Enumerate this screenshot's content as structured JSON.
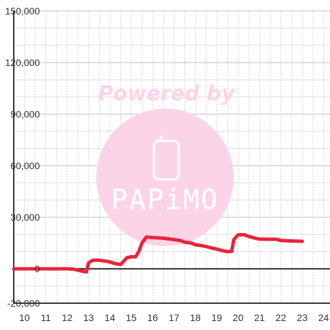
{
  "chart_data": {
    "type": "line",
    "title": "",
    "xlabel": "",
    "ylabel": "",
    "xlim": [
      9.5,
      24.3
    ],
    "ylim": [
      -20000,
      150000
    ],
    "x_ticks": [
      10,
      11,
      12,
      13,
      14,
      15,
      16,
      17,
      18,
      19,
      20,
      21,
      22,
      23,
      24
    ],
    "y_ticks": [
      -20000,
      0,
      30000,
      60000,
      90000,
      120000,
      150000
    ],
    "x_tick_labels": [
      "10",
      "11",
      "12",
      "13",
      "14",
      "15",
      "16",
      "17",
      "18",
      "19",
      "20",
      "21",
      "22",
      "23",
      "24"
    ],
    "y_tick_labels": [
      "-20,000",
      "0",
      "30,000",
      "60,000",
      "90,000",
      "120,000",
      "150,000"
    ],
    "grid": true,
    "series": [
      {
        "color": "#e8243c",
        "x": [
          9.5,
          10,
          11,
          12,
          12.3,
          12.5,
          12.75,
          12.9,
          13.0,
          13.2,
          13.5,
          13.8,
          14.0,
          14.2,
          14.5,
          14.8,
          15.0,
          15.2,
          15.35,
          15.5,
          15.7,
          16.0,
          16.5,
          17.0,
          17.3,
          17.5,
          17.8,
          18.0,
          18.3,
          18.5,
          18.8,
          19.0,
          19.3,
          19.5,
          19.7,
          19.8,
          20.0,
          20.3,
          20.5,
          20.8,
          21.0,
          21.5,
          21.8,
          22.0,
          22.5,
          23.0
        ],
        "y": [
          0,
          0,
          0,
          0,
          -200,
          -800,
          -1500,
          -1800,
          3500,
          5000,
          5000,
          4500,
          4000,
          3200,
          2500,
          6500,
          7000,
          7000,
          10000,
          15000,
          18500,
          18200,
          17800,
          17000,
          16500,
          15500,
          15000,
          14000,
          13500,
          13000,
          12000,
          11500,
          10500,
          10000,
          10200,
          17000,
          19800,
          19800,
          18800,
          17800,
          17300,
          17200,
          17200,
          16500,
          16200,
          16000
        ]
      }
    ],
    "watermark": {
      "caption": "Powered by",
      "logo_text": "PAPiMO"
    }
  },
  "colors": {
    "line": "#e8243c",
    "grid": "#bbbbbb",
    "axis": "#333333",
    "watermark": "#fcd4e8"
  }
}
